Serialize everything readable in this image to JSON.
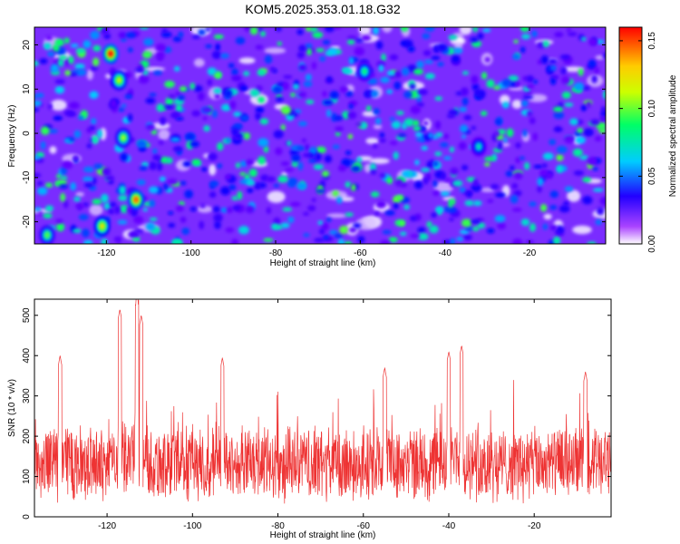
{
  "title": "KOM5.2025.353.01.18.G32",
  "chart_data": [
    {
      "type": "heatmap",
      "xlabel": "Height of straight line (km)",
      "ylabel": "Frequency (Hz)",
      "xlim": [
        -137,
        -2
      ],
      "ylim": [
        -25,
        24
      ],
      "xticks": [
        -120,
        -100,
        -80,
        -60,
        -40,
        -20
      ],
      "yticks": [
        -20,
        -10,
        0,
        10,
        20
      ],
      "colorbar": {
        "label": "Normalized spectral amplitude",
        "range": [
          0.0,
          0.16
        ],
        "ticks": [
          0.0,
          0.05,
          0.1,
          0.15
        ],
        "tick_labels": [
          "0.00",
          "0.05",
          "0.10",
          "0.15"
        ],
        "colormap": [
          "#ffffff",
          "#8800ff",
          "#0000ff",
          "#00ccff",
          "#00ff66",
          "#ccff00",
          "#ffcc00",
          "#ff0000"
        ]
      },
      "hotspots": [
        {
          "x": -119,
          "y": 18,
          "value": 0.16
        },
        {
          "x": -113,
          "y": -15,
          "value": 0.15
        },
        {
          "x": -121,
          "y": -21,
          "value": 0.13
        },
        {
          "x": -117,
          "y": 12,
          "value": 0.12
        },
        {
          "x": -116,
          "y": -1,
          "value": 0.11
        },
        {
          "x": -134,
          "y": -23,
          "value": 0.1
        },
        {
          "x": -59,
          "y": 14,
          "value": 0.09
        },
        {
          "x": -32,
          "y": -3,
          "value": 0.08
        }
      ]
    },
    {
      "type": "line",
      "xlabel": "Height of straight line (km)",
      "ylabel": "SNR (10 * v/v)",
      "xlim": [
        -137,
        -2
      ],
      "ylim": [
        0,
        540
      ],
      "xticks": [
        -120,
        -100,
        -80,
        -60,
        -40,
        -20
      ],
      "yticks": [
        0,
        100,
        200,
        300,
        400,
        500
      ],
      "color": "#ee3333",
      "baseline_mean": 130,
      "noise_spread": 80,
      "peaks": [
        {
          "x": -117,
          "y": 515
        },
        {
          "x": -113,
          "y": 540
        },
        {
          "x": -112,
          "y": 500
        },
        {
          "x": -93,
          "y": 395
        },
        {
          "x": -131,
          "y": 400
        },
        {
          "x": -40,
          "y": 410
        },
        {
          "x": -37,
          "y": 425
        },
        {
          "x": -55,
          "y": 370
        },
        {
          "x": -8,
          "y": 360
        }
      ]
    }
  ]
}
